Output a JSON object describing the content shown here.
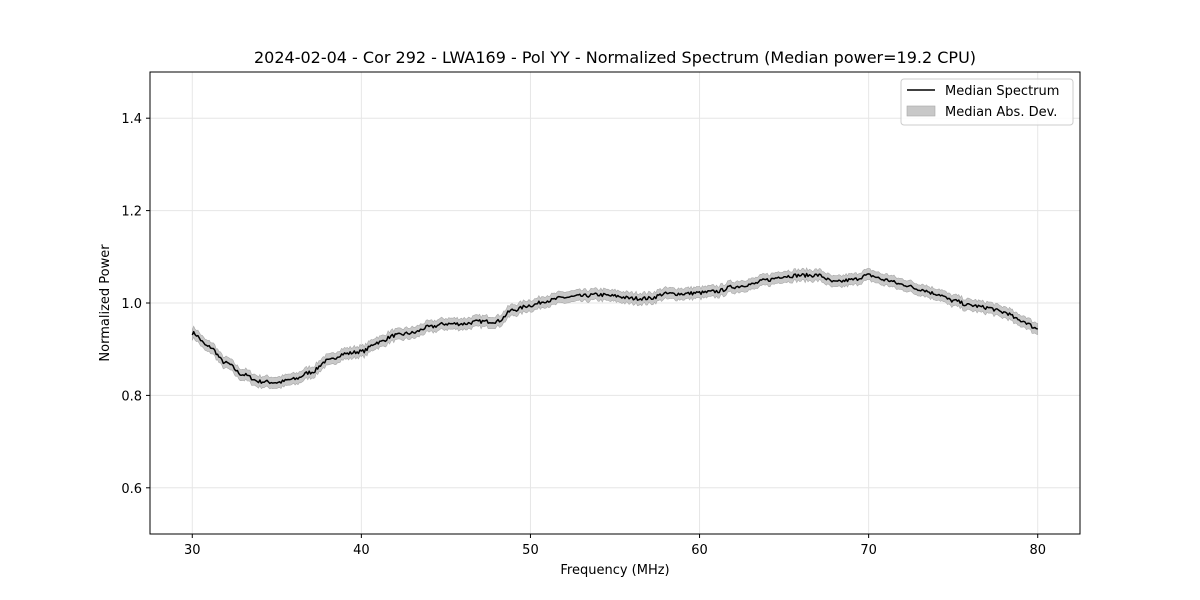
{
  "chart_data": {
    "type": "line",
    "title": "2024-02-04 - Cor 292 - LWA169 - Pol YY - Normalized Spectrum (Median power=19.2 CPU)",
    "xlabel": "Frequency (MHz)",
    "ylabel": "Normalized Power",
    "xlim": [
      27.5,
      82.5
    ],
    "ylim": [
      0.5,
      1.5
    ],
    "xticks": [
      30,
      40,
      50,
      60,
      70,
      80
    ],
    "xtick_labels": [
      "30",
      "40",
      "50",
      "60",
      "70",
      "80"
    ],
    "yticks": [
      0.6,
      0.8,
      1.0,
      1.2,
      1.4
    ],
    "ytick_labels": [
      "0.6",
      "0.8",
      "1.0",
      "1.2",
      "1.4"
    ],
    "grid": true,
    "legend_position": "top-right",
    "legend": [
      "Median Spectrum",
      "Median Abs. Dev."
    ],
    "series": [
      {
        "name": "Median Spectrum",
        "color": "#000000",
        "x": [
          30,
          31,
          32,
          33,
          34,
          35,
          36,
          37,
          38,
          39,
          40,
          41,
          42,
          43,
          44,
          45,
          46,
          47,
          48,
          49,
          50,
          51,
          52,
          53,
          54,
          55,
          56,
          57,
          58,
          59,
          60,
          61,
          62,
          63,
          64,
          65,
          66,
          67,
          68,
          69,
          70,
          71,
          72,
          73,
          74,
          75,
          76,
          77,
          78,
          79,
          80
        ],
        "y": [
          0.935,
          0.905,
          0.87,
          0.845,
          0.83,
          0.828,
          0.835,
          0.85,
          0.875,
          0.89,
          0.895,
          0.915,
          0.93,
          0.935,
          0.948,
          0.955,
          0.955,
          0.96,
          0.96,
          0.985,
          0.995,
          1.005,
          1.012,
          1.015,
          1.018,
          1.015,
          1.01,
          1.01,
          1.02,
          1.02,
          1.022,
          1.025,
          1.035,
          1.04,
          1.05,
          1.058,
          1.06,
          1.06,
          1.045,
          1.05,
          1.06,
          1.05,
          1.04,
          1.03,
          1.02,
          1.005,
          0.995,
          0.99,
          0.98,
          0.962,
          0.945
        ]
      },
      {
        "name": "Median Abs. Dev.",
        "color": "#c8c8c8",
        "dev": 0.012
      }
    ]
  }
}
